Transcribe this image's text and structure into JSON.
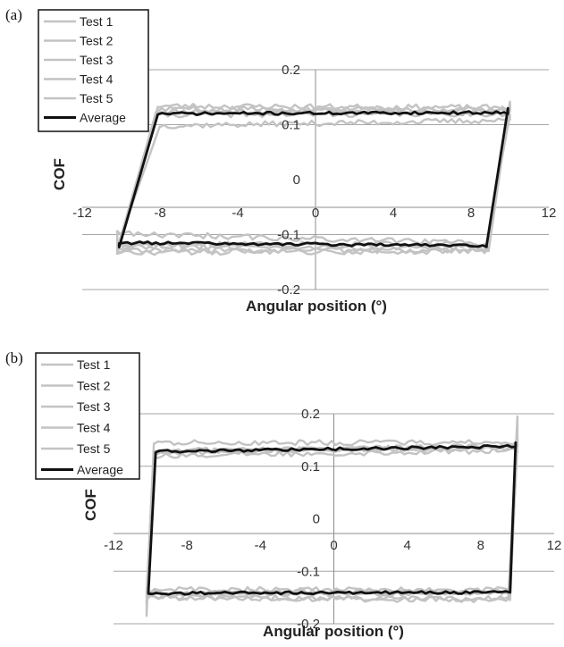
{
  "chart_data": [
    {
      "panel_label": "(a)",
      "type": "line",
      "xlabel": "Angular position (°)",
      "ylabel": "COF",
      "xlim": [
        -12,
        12
      ],
      "ylim": [
        -0.2,
        0.2
      ],
      "xticks": [
        "-12",
        "-8",
        "-4",
        "0",
        "4",
        "8",
        "12"
      ],
      "yticks": [
        "0.2",
        "0.1",
        "0",
        "-0.1",
        "-0.2"
      ],
      "grid": "horizontal",
      "legend_position": "top-left",
      "colors": {
        "test": "#c3c3c3",
        "average": "#111111"
      },
      "series": [
        {
          "name": "Test 1",
          "loop": {
            "x_min": -10.2,
            "x_max": 10.0,
            "top_left": 0.124,
            "top_right": 0.125,
            "bottom_left": -0.122,
            "bottom_right": -0.124,
            "turn_top": -8.2,
            "turn_bottom": 8.8,
            "end_top": 0.132,
            "end_bottom": -0.128
          }
        },
        {
          "name": "Test 2",
          "loop": {
            "x_min": -10.2,
            "x_max": 10.0,
            "top_left": 0.134,
            "top_right": 0.131,
            "bottom_left": -0.128,
            "bottom_right": -0.129,
            "turn_top": -8.1,
            "turn_bottom": 8.9,
            "end_top": 0.14,
            "end_bottom": -0.134
          }
        },
        {
          "name": "Test 3",
          "loop": {
            "x_min": -10.2,
            "x_max": 10.0,
            "top_left": 0.098,
            "top_right": 0.108,
            "bottom_left": -0.098,
            "bottom_right": -0.116,
            "turn_top": -8.0,
            "turn_bottom": 8.8,
            "end_top": 0.118,
            "end_bottom": -0.122
          }
        },
        {
          "name": "Test 4",
          "loop": {
            "x_min": -10.2,
            "x_max": 10.0,
            "top_left": 0.118,
            "top_right": 0.12,
            "bottom_left": -0.118,
            "bottom_right": -0.118,
            "turn_top": -8.2,
            "turn_bottom": 8.8,
            "end_top": 0.136,
            "end_bottom": -0.126
          }
        },
        {
          "name": "Test 5",
          "loop": {
            "x_min": -10.2,
            "x_max": 10.0,
            "top_left": 0.128,
            "top_right": 0.128,
            "bottom_left": -0.132,
            "bottom_right": -0.13,
            "turn_top": -8.1,
            "turn_bottom": 8.9,
            "end_top": 0.142,
            "end_bottom": -0.13
          }
        },
        {
          "name": "Average",
          "loop": {
            "x_min": -10.1,
            "x_max": 9.9,
            "top_left": 0.12,
            "top_right": 0.122,
            "bottom_left": -0.115,
            "bottom_right": -0.12,
            "turn_top": -8.1,
            "turn_bottom": 8.8,
            "end_top": 0.13,
            "end_bottom": -0.123
          }
        }
      ]
    },
    {
      "panel_label": "(b)",
      "type": "line",
      "xlabel": "Angular position (°)",
      "ylabel": "COF",
      "xlim": [
        -12,
        12
      ],
      "ylim": [
        -0.2,
        0.2
      ],
      "xticks": [
        "-12",
        "-8",
        "-4",
        "0",
        "4",
        "8",
        "12"
      ],
      "yticks": [
        "0.2",
        "0.1",
        "0",
        "-0.1",
        "-0.2"
      ],
      "grid": "horizontal",
      "legend_position": "top-left",
      "colors": {
        "test": "#c3c3c3",
        "average": "#111111"
      },
      "series": [
        {
          "name": "Test 1",
          "loop": {
            "x_min": -10.2,
            "x_max": 10.0,
            "top_left": 0.125,
            "top_right": 0.14,
            "bottom_left": -0.15,
            "bottom_right": -0.152,
            "turn_top": -9.8,
            "turn_bottom": 9.5,
            "end_top": 0.195,
            "end_bottom": -0.185
          }
        },
        {
          "name": "Test 2",
          "loop": {
            "x_min": -10.2,
            "x_max": 10.0,
            "top_left": 0.13,
            "top_right": 0.134,
            "bottom_left": -0.145,
            "bottom_right": -0.14,
            "turn_top": -9.8,
            "turn_bottom": 9.6,
            "end_top": 0.15,
            "end_bottom": -0.15
          }
        },
        {
          "name": "Test 3",
          "loop": {
            "x_min": -10.2,
            "x_max": 10.0,
            "top_left": 0.145,
            "top_right": 0.145,
            "bottom_left": -0.15,
            "bottom_right": -0.155,
            "turn_top": -9.8,
            "turn_bottom": 9.6,
            "end_top": 0.155,
            "end_bottom": -0.16
          }
        },
        {
          "name": "Test 4",
          "loop": {
            "x_min": -10.2,
            "x_max": 10.0,
            "top_left": 0.12,
            "top_right": 0.13,
            "bottom_left": -0.135,
            "bottom_right": -0.135,
            "turn_top": -9.8,
            "turn_bottom": 9.6,
            "end_top": 0.14,
            "end_bottom": -0.14
          }
        },
        {
          "name": "Test 5",
          "loop": {
            "x_min": -10.2,
            "x_max": 10.0,
            "top_left": 0.128,
            "top_right": 0.138,
            "bottom_left": -0.14,
            "bottom_right": -0.14,
            "turn_top": -9.8,
            "turn_bottom": 9.6,
            "end_top": 0.145,
            "end_bottom": -0.145
          }
        },
        {
          "name": "Average",
          "loop": {
            "x_min": -10.1,
            "x_max": 9.9,
            "top_left": 0.128,
            "top_right": 0.138,
            "bottom_left": -0.142,
            "bottom_right": -0.14,
            "turn_top": -9.7,
            "turn_bottom": 9.6,
            "end_top": 0.145,
            "end_bottom": -0.14
          }
        }
      ]
    }
  ]
}
